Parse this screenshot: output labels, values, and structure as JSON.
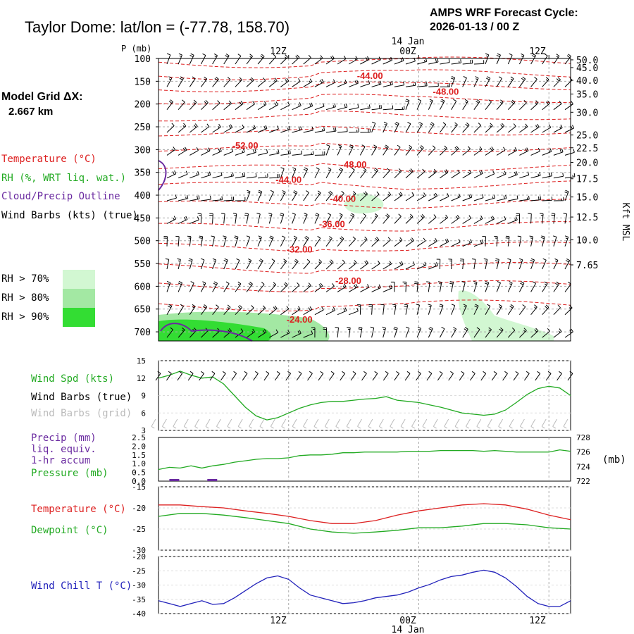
{
  "header": {
    "station": "Taylor Dome:  lat/lon = (-77.78, 158.70)",
    "cycle_line1": "AMPS WRF Forecast Cycle:",
    "cycle_line2": "2026-01-13 / 00  Z"
  },
  "grid_info": {
    "label": "Model Grid ΔX:",
    "value": "2.667 km"
  },
  "colors": {
    "temperature": "#dd2020",
    "rh": "#22aa22",
    "cloud_outline": "#6a2aa0",
    "wind_barbs": "#000000",
    "wind_barbs_grid": "#bbbbbb",
    "wind_chill": "#2222bb",
    "rh70": "#d2f7d2",
    "rh80": "#a3e8a3",
    "rh90": "#33dd33",
    "grid": "#aaaaaa"
  },
  "time_axis": {
    "top_labels": [
      "12Z",
      "00Z",
      "12Z"
    ],
    "top_day_label": "14 Jan",
    "bottom_labels": [
      "12Z",
      "00Z",
      "12Z"
    ],
    "bottom_day_label": "14 Jan"
  },
  "legend": {
    "temperature": "Temperature (°C)",
    "rh": "RH (%, WRT liq. wat.)",
    "cloud": "Cloud/Precip Outline",
    "barbs": "Wind Barbs (kts) (true)",
    "rh70": "RH > 70%",
    "rh80": "RH > 80%",
    "rh90": "RH > 90%"
  },
  "chart_data": [
    {
      "type": "contour",
      "name": "Vertical time-section",
      "pressure_axis_label": "P (mb)",
      "pressure_levels": [
        100,
        150,
        200,
        250,
        300,
        350,
        400,
        450,
        500,
        550,
        600,
        650,
        700
      ],
      "height_axis_label": "Kft MSL",
      "height_ticks": [
        "50.0",
        "45.0",
        "40.0",
        "35.0",
        "30.0",
        "25.0",
        "22.5",
        "20.0",
        "17.5",
        "15.0",
        "12.5",
        "10.0",
        "7.65"
      ],
      "height_tick_pressures": [
        103,
        120,
        148,
        178,
        218,
        268,
        296,
        328,
        364,
        404,
        448,
        498,
        553
      ],
      "temperature_labels": [
        {
          "text": "-44.00",
          "hour": 19.5,
          "p": 145
        },
        {
          "text": "-48.00",
          "hour": 26.5,
          "p": 180
        },
        {
          "text": "-52.00",
          "hour": 8.0,
          "p": 298
        },
        {
          "text": "-48.00",
          "hour": 18.0,
          "p": 340
        },
        {
          "text": "-44.00",
          "hour": 12.0,
          "p": 373
        },
        {
          "text": "-40.00",
          "hour": 17.0,
          "p": 415
        },
        {
          "text": "-36.00",
          "hour": 16.0,
          "p": 470
        },
        {
          "text": "-32.00",
          "hour": 13.0,
          "p": 526
        },
        {
          "text": "-28.00",
          "hour": 17.5,
          "p": 595
        },
        {
          "text": "-24.00",
          "hour": 13.0,
          "p": 680
        }
      ],
      "temperature_contour_pressures": [
        108,
        135,
        162,
        190,
        228,
        262,
        298,
        340,
        378,
        420,
        470,
        515,
        560,
        600,
        642
      ],
      "rh_regions": [
        {
          "level": 70,
          "description": "moist layer near 410 mb around 15-21Z"
        },
        {
          "level": 70,
          "description": "moist layer near 600-720 mb around 31-37Z"
        },
        {
          "level": 80,
          "description": "near-surface moist layer 00-18Z"
        },
        {
          "level": 90,
          "description": "near-surface saturated layer 00-10Z"
        }
      ],
      "cloud_outline": "near surface 00-09Z and at upper-left edge around 330-380 mb"
    },
    {
      "type": "line",
      "name": "Surface wind speed",
      "label": "Wind Spd (kts)",
      "barbs_true_label": "Wind Barbs (true)",
      "barbs_grid_label": "Wind Barbs (grid)",
      "ylim": [
        3,
        15
      ],
      "yticks": [
        "15",
        "12",
        "9",
        "6",
        "3"
      ],
      "x_hours": [
        0,
        1,
        2,
        3,
        4,
        5,
        6,
        7,
        8,
        9,
        10,
        11,
        12,
        13,
        14,
        15,
        16,
        17,
        18,
        19,
        20,
        21,
        22,
        23,
        24,
        25,
        26,
        27,
        28,
        29,
        30,
        31,
        32,
        33,
        34,
        35,
        36,
        37,
        38
      ],
      "values": [
        12.0,
        12.5,
        13.2,
        12.5,
        12.0,
        12.2,
        11.0,
        9.0,
        7.0,
        5.5,
        4.8,
        5.2,
        6.0,
        6.8,
        7.4,
        7.8,
        8.0,
        8.0,
        8.2,
        8.4,
        8.5,
        8.8,
        8.2,
        8.0,
        7.8,
        7.4,
        7.0,
        6.5,
        6.0,
        5.8,
        5.6,
        5.8,
        6.5,
        7.8,
        9.2,
        10.2,
        10.6,
        10.3,
        9.0
      ]
    },
    {
      "type": "line",
      "name": "Precip and pressure",
      "precip_label": "Precip (mm)",
      "precip_sub1": "liq. equiv.",
      "precip_sub2": "1-hr accum",
      "pressure_label": "Pressure (mb)",
      "pressure_units": "(mb)",
      "precip_ylim": [
        0,
        2.5
      ],
      "precip_ticks": [
        "2.5",
        "2.0",
        "1.5",
        "1.0",
        "0.5",
        "0.0"
      ],
      "pressure_ylim": [
        722,
        728
      ],
      "pressure_ticks": [
        "728",
        "726",
        "724",
        "722"
      ],
      "x_hours": [
        0,
        1,
        2,
        3,
        4,
        5,
        6,
        7,
        8,
        9,
        10,
        11,
        12,
        13,
        14,
        15,
        16,
        17,
        18,
        19,
        20,
        21,
        22,
        23,
        24,
        25,
        26,
        27,
        28,
        29,
        30,
        31,
        32,
        33,
        34,
        35,
        36,
        37,
        38
      ],
      "pressure": [
        723.6,
        723.9,
        723.8,
        724.1,
        723.8,
        724.1,
        724.3,
        724.6,
        724.8,
        725.0,
        725.1,
        725.1,
        725.2,
        725.5,
        725.6,
        725.6,
        725.7,
        725.9,
        725.9,
        726.0,
        726.0,
        726.0,
        726.0,
        726.1,
        726.1,
        726.1,
        726.2,
        726.2,
        726.2,
        726.2,
        726.1,
        726.2,
        726.1,
        726.0,
        726.0,
        726.0,
        726.0,
        726.3,
        726.1
      ],
      "precip": [
        {
          "hour": 1,
          "mm": 0.03
        },
        {
          "hour": 4.5,
          "mm": 0.02
        }
      ]
    },
    {
      "type": "line",
      "name": "Temperature and dewpoint",
      "temperature_label": "Temperature (°C)",
      "dewpoint_label": "Dewpoint (°C)",
      "ylim": [
        -30,
        -15
      ],
      "yticks": [
        "-15",
        "-20",
        "-25",
        "-30"
      ],
      "x_hours": [
        0,
        2,
        4,
        6,
        8,
        10,
        12,
        14,
        16,
        18,
        20,
        22,
        24,
        26,
        28,
        30,
        32,
        34,
        36,
        38
      ],
      "series": [
        {
          "name": "Temperature",
          "values": [
            -19.3,
            -19.3,
            -19.7,
            -20.0,
            -20.7,
            -21.3,
            -22.0,
            -23.0,
            -23.7,
            -23.7,
            -23.0,
            -21.7,
            -20.7,
            -20.0,
            -19.3,
            -19.0,
            -19.3,
            -20.3,
            -21.7,
            -22.8
          ]
        },
        {
          "name": "Dewpoint",
          "values": [
            -22.0,
            -21.3,
            -21.3,
            -21.7,
            -22.3,
            -23.0,
            -23.7,
            -25.0,
            -25.7,
            -26.0,
            -25.7,
            -25.3,
            -24.7,
            -24.7,
            -24.3,
            -23.7,
            -23.7,
            -24.0,
            -24.7,
            -25.0
          ]
        }
      ]
    },
    {
      "type": "line",
      "name": "Wind chill",
      "label": "Wind Chill T (°C)",
      "ylim": [
        -40,
        -20
      ],
      "yticks": [
        "-20",
        "-25",
        "-30",
        "-35",
        "-40"
      ],
      "x_hours": [
        0,
        1,
        2,
        3,
        4,
        5,
        6,
        7,
        8,
        9,
        10,
        11,
        12,
        13,
        14,
        15,
        16,
        17,
        18,
        19,
        20,
        21,
        22,
        23,
        24,
        25,
        26,
        27,
        28,
        29,
        30,
        31,
        32,
        33,
        34,
        35,
        36,
        37,
        38
      ],
      "values": [
        -35.5,
        -36.5,
        -37.5,
        -36.5,
        -35.5,
        -36.8,
        -36.5,
        -34.5,
        -32.0,
        -29.5,
        -27.5,
        -26.8,
        -28.0,
        -31.0,
        -33.5,
        -34.5,
        -35.5,
        -36.5,
        -36.2,
        -35.5,
        -34.5,
        -34.0,
        -33.5,
        -32.5,
        -31.0,
        -29.8,
        -28.2,
        -27.0,
        -26.5,
        -25.5,
        -24.8,
        -25.5,
        -27.5,
        -30.5,
        -34.0,
        -36.5,
        -37.5,
        -37.5,
        -35.5
      ]
    }
  ]
}
